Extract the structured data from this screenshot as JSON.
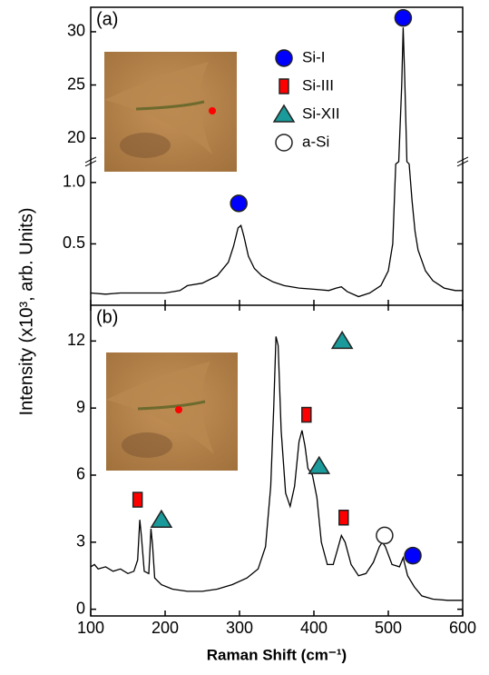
{
  "ylabel": "Intensity (x10³, arb. Units)",
  "xlabel": "Raman Shift (cm⁻¹)",
  "chart_data": [
    {
      "type": "line",
      "panel_label": "(a)",
      "color": "#000000",
      "xlim": [
        100,
        600
      ],
      "ylim": [
        0,
        32.3
      ],
      "y_break": [
        1.17,
        17.8
      ],
      "yticks": [
        0.5,
        {
          "value": 1,
          "label": "1.0"
        },
        20,
        25,
        30
      ],
      "x": [
        100,
        120,
        140,
        160,
        180,
        200,
        220,
        230,
        250,
        270,
        285,
        292,
        298,
        302,
        306,
        312,
        320,
        330,
        345,
        360,
        380,
        400,
        420,
        430,
        437,
        445,
        460,
        475,
        490,
        500,
        506,
        510,
        514,
        518,
        520,
        522,
        525,
        528,
        532,
        536,
        540,
        550,
        560,
        575,
        590,
        600
      ],
      "values": [
        0.1,
        0.09,
        0.1,
        0.1,
        0.1,
        0.1,
        0.12,
        0.16,
        0.18,
        0.24,
        0.35,
        0.48,
        0.63,
        0.65,
        0.56,
        0.4,
        0.3,
        0.24,
        0.19,
        0.16,
        0.14,
        0.13,
        0.12,
        0.14,
        0.15,
        0.11,
        0.07,
        0.1,
        0.16,
        0.28,
        0.5,
        1.15,
        5,
        25,
        30.4,
        26,
        5,
        1.15,
        0.85,
        0.6,
        0.45,
        0.28,
        0.2,
        0.14,
        0.12,
        0.12
      ],
      "phases": [
        {
          "name": "Si-I",
          "shape": "circle",
          "color": "#0000ff",
          "x": [
            520,
            299
          ],
          "y": [
            31.3,
            0.83
          ]
        },
        {
          "name": "Si-III",
          "shape": "square",
          "color": "#ff0000",
          "x": [],
          "y": []
        },
        {
          "name": "Si-XII",
          "shape": "triangle",
          "color": "#1a9a9a",
          "x": [],
          "y": []
        },
        {
          "name": "a-Si",
          "shape": "open-circle",
          "color": "#ffffff",
          "x": [],
          "y": []
        }
      ]
    },
    {
      "type": "line",
      "panel_label": "(b)",
      "color": "#000000",
      "xlim": [
        100,
        600
      ],
      "xticks": [
        100,
        200,
        300,
        400,
        500,
        600
      ],
      "ylim": [
        -0.3,
        13.6
      ],
      "yticks": [
        0,
        3,
        6,
        9,
        12
      ],
      "x": [
        100,
        105,
        110,
        120,
        130,
        140,
        150,
        158,
        163,
        166,
        168,
        172,
        178,
        181,
        183,
        186,
        195,
        210,
        230,
        250,
        270,
        290,
        310,
        325,
        335,
        342,
        346,
        349,
        352,
        356,
        362,
        368,
        374,
        380,
        384,
        388,
        392,
        398,
        404,
        410,
        418,
        426,
        432,
        437,
        442,
        450,
        460,
        470,
        480,
        488,
        492,
        496,
        505,
        515,
        520,
        526,
        535,
        545,
        560,
        580,
        600
      ],
      "values": [
        1.9,
        2.0,
        1.8,
        1.9,
        1.7,
        1.8,
        1.6,
        1.7,
        2.2,
        4.0,
        3.3,
        1.7,
        1.6,
        3.6,
        2.9,
        1.4,
        1.1,
        0.9,
        0.8,
        0.8,
        0.9,
        1.1,
        1.4,
        1.8,
        2.8,
        5.5,
        9,
        12.2,
        11.8,
        8,
        5.2,
        4.6,
        5.5,
        7.5,
        8.0,
        7.3,
        6.3,
        6.0,
        5.0,
        3.0,
        2.0,
        2.0,
        2.7,
        3.3,
        3.0,
        2.0,
        1.5,
        1.6,
        2.1,
        2.8,
        3.0,
        2.8,
        2.0,
        1.9,
        2.3,
        1.5,
        1.0,
        0.6,
        0.45,
        0.4,
        0.4
      ],
      "phases": [
        {
          "shape": "circle",
          "color": "#0000ff",
          "x": [
            533
          ],
          "y": [
            2.4
          ]
        },
        {
          "shape": "square",
          "color": "#ff0000",
          "x": [
            163,
            390,
            440
          ],
          "y": [
            4.9,
            8.7,
            4.1
          ]
        },
        {
          "shape": "triangle",
          "color": "#1a9a9a",
          "x": [
            195,
            438,
            407
          ],
          "y": [
            4.0,
            12.0,
            6.4
          ]
        },
        {
          "shape": "open-circle",
          "color": "#ffffff",
          "x": [
            495
          ],
          "y": [
            3.3
          ]
        }
      ]
    }
  ]
}
